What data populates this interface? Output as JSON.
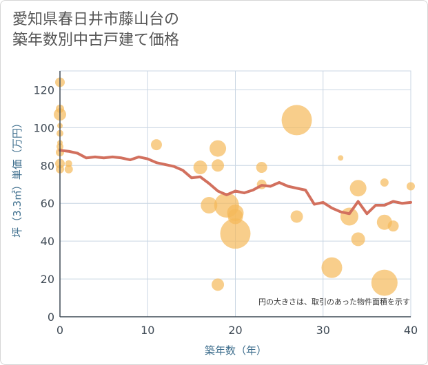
{
  "title_line1": "愛知県春日井市藤山台の",
  "title_line2": "築年数別中古戸建て価格",
  "chart_data": {
    "type": "scatter",
    "title": "愛知県春日井市藤山台の築年数別中古戸建て価格",
    "xlabel": "築年数（年）",
    "ylabel": "坪（3.3㎡）単価（万円）",
    "xlim": [
      0,
      40
    ],
    "ylim": [
      0,
      130
    ],
    "x_ticks": [
      0,
      10,
      20,
      30,
      40
    ],
    "y_ticks": [
      0,
      20,
      40,
      60,
      80,
      100,
      120
    ],
    "grid": true,
    "note": "円の大きさは、取引のあった物件面積を示す",
    "colors": {
      "bubble": "#f5b95a",
      "line": "#d2705e",
      "grid": "#c9d6e3",
      "axis": "#3f4a55"
    },
    "series": [
      {
        "type": "bubble",
        "points": [
          {
            "x": 0,
            "y": 124,
            "s": 7
          },
          {
            "x": 0,
            "y": 110,
            "s": 6
          },
          {
            "x": 0,
            "y": 107,
            "s": 9
          },
          {
            "x": 0,
            "y": 101,
            "s": 4
          },
          {
            "x": 0,
            "y": 97,
            "s": 5
          },
          {
            "x": 0,
            "y": 92,
            "s": 4
          },
          {
            "x": 0,
            "y": 90,
            "s": 5
          },
          {
            "x": 0,
            "y": 87,
            "s": 6
          },
          {
            "x": 0,
            "y": 81,
            "s": 7
          },
          {
            "x": 0,
            "y": 78,
            "s": 6
          },
          {
            "x": 1,
            "y": 81,
            "s": 5
          },
          {
            "x": 1,
            "y": 78,
            "s": 6
          },
          {
            "x": 11,
            "y": 91,
            "s": 8
          },
          {
            "x": 16,
            "y": 79,
            "s": 10
          },
          {
            "x": 17,
            "y": 59,
            "s": 12
          },
          {
            "x": 18,
            "y": 89,
            "s": 12
          },
          {
            "x": 18,
            "y": 80,
            "s": 9
          },
          {
            "x": 18,
            "y": 17,
            "s": 9
          },
          {
            "x": 19,
            "y": 59,
            "s": 18
          },
          {
            "x": 20,
            "y": 55,
            "s": 12
          },
          {
            "x": 20,
            "y": 53,
            "s": 11
          },
          {
            "x": 20,
            "y": 44,
            "s": 22
          },
          {
            "x": 23,
            "y": 79,
            "s": 8
          },
          {
            "x": 23,
            "y": 70,
            "s": 7
          },
          {
            "x": 27,
            "y": 104,
            "s": 22
          },
          {
            "x": 27,
            "y": 53,
            "s": 9
          },
          {
            "x": 31,
            "y": 26,
            "s": 15
          },
          {
            "x": 32,
            "y": 84,
            "s": 4
          },
          {
            "x": 33,
            "y": 53,
            "s": 13
          },
          {
            "x": 34,
            "y": 68,
            "s": 12
          },
          {
            "x": 34,
            "y": 41,
            "s": 10
          },
          {
            "x": 37,
            "y": 71,
            "s": 6
          },
          {
            "x": 37,
            "y": 50,
            "s": 11
          },
          {
            "x": 37,
            "y": 18,
            "s": 19
          },
          {
            "x": 38,
            "y": 48,
            "s": 8
          },
          {
            "x": 40,
            "y": 69,
            "s": 6
          }
        ]
      },
      {
        "type": "line",
        "points": [
          {
            "x": 0,
            "y": 88
          },
          {
            "x": 1,
            "y": 87.5
          },
          {
            "x": 2,
            "y": 86.5
          },
          {
            "x": 3,
            "y": 84
          },
          {
            "x": 4,
            "y": 84.5
          },
          {
            "x": 5,
            "y": 84
          },
          {
            "x": 6,
            "y": 84.5
          },
          {
            "x": 7,
            "y": 84
          },
          {
            "x": 8,
            "y": 83
          },
          {
            "x": 9,
            "y": 84.5
          },
          {
            "x": 10,
            "y": 83.5
          },
          {
            "x": 11,
            "y": 81.5
          },
          {
            "x": 12,
            "y": 80.5
          },
          {
            "x": 13,
            "y": 79.5
          },
          {
            "x": 14,
            "y": 77.5
          },
          {
            "x": 15,
            "y": 73.5
          },
          {
            "x": 16,
            "y": 74
          },
          {
            "x": 17,
            "y": 70.5
          },
          {
            "x": 18,
            "y": 66.5
          },
          {
            "x": 19,
            "y": 64.5
          },
          {
            "x": 20,
            "y": 66.5
          },
          {
            "x": 21,
            "y": 65.5
          },
          {
            "x": 22,
            "y": 67
          },
          {
            "x": 23,
            "y": 69.5
          },
          {
            "x": 24,
            "y": 69
          },
          {
            "x": 25,
            "y": 71
          },
          {
            "x": 26,
            "y": 69
          },
          {
            "x": 27,
            "y": 68
          },
          {
            "x": 28,
            "y": 67
          },
          {
            "x": 29,
            "y": 59.5
          },
          {
            "x": 30,
            "y": 60.5
          },
          {
            "x": 31,
            "y": 57.5
          },
          {
            "x": 32,
            "y": 55.5
          },
          {
            "x": 33,
            "y": 54.5
          },
          {
            "x": 34,
            "y": 61
          },
          {
            "x": 35,
            "y": 54.5
          },
          {
            "x": 36,
            "y": 59
          },
          {
            "x": 37,
            "y": 59
          },
          {
            "x": 38,
            "y": 61
          },
          {
            "x": 39,
            "y": 60
          },
          {
            "x": 40,
            "y": 60.5
          }
        ]
      }
    ]
  }
}
